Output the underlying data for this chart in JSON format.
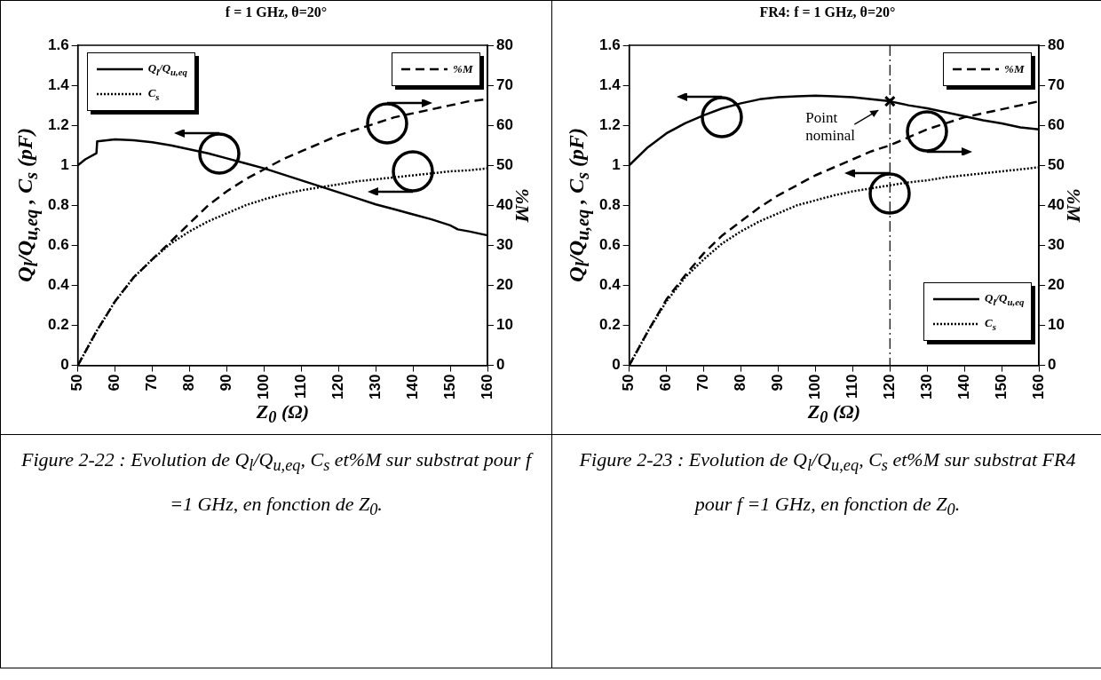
{
  "chart_data": [
    {
      "type": "line",
      "title": "f = 1 GHz, θ=20°",
      "xlabel": "Z$_{0}$ (Ω)",
      "ylabel": "Q$_{l}$/Q$_{u,eq}$ , C$_{s}$ (pF)",
      "y2label": "%M",
      "xlim": [
        50,
        160
      ],
      "xticks": [
        50,
        60,
        70,
        80,
        90,
        100,
        110,
        120,
        130,
        140,
        150,
        160
      ],
      "ylim": [
        0,
        1.6
      ],
      "yticks": [
        0,
        0.2,
        0.4,
        0.6,
        0.8,
        1,
        1.2,
        1.4,
        1.6
      ],
      "y2lim": [
        0,
        80
      ],
      "y2ticks": [
        0,
        10,
        20,
        30,
        40,
        50,
        60,
        70,
        80
      ],
      "legend": "top left",
      "marker": "none",
      "grid": false,
      "series": [
        {
          "name": "Q$_{l}$/Q$_{u,eq}$",
          "color": "#000000",
          "line_style": "solid",
          "x": [
            50,
            52,
            55,
            55.2,
            60,
            65,
            70,
            75,
            80,
            85,
            90,
            95,
            100,
            105,
            110,
            115,
            120,
            125,
            130,
            135,
            140,
            145,
            150,
            152,
            155,
            160
          ],
          "values": [
            1.0,
            1.03,
            1.06,
            1.12,
            1.13,
            1.125,
            1.115,
            1.1,
            1.08,
            1.06,
            1.035,
            1.01,
            0.985,
            0.955,
            0.925,
            0.895,
            0.865,
            0.835,
            0.805,
            0.78,
            0.755,
            0.73,
            0.7,
            0.68,
            0.67,
            0.65
          ]
        },
        {
          "name": "C$_{s}$",
          "color": "#000000",
          "line_style": "dotted",
          "x": [
            50,
            55,
            60,
            65,
            70,
            75,
            80,
            85,
            90,
            95,
            100,
            105,
            110,
            115,
            120,
            125,
            130,
            135,
            140,
            145,
            150,
            155,
            160
          ],
          "values": [
            0,
            0.17,
            0.32,
            0.44,
            0.53,
            0.61,
            0.67,
            0.72,
            0.76,
            0.8,
            0.83,
            0.855,
            0.875,
            0.89,
            0.905,
            0.92,
            0.93,
            0.94,
            0.95,
            0.96,
            0.97,
            0.975,
            0.985
          ]
        },
        {
          "name": "%M",
          "color": "#000000",
          "line_style": "dashed",
          "axis": "y2",
          "x": [
            50,
            55,
            60,
            65,
            70,
            75,
            80,
            85,
            90,
            95,
            100,
            105,
            110,
            115,
            120,
            125,
            130,
            135,
            140,
            145,
            150,
            155,
            160
          ],
          "values": [
            0,
            8.5,
            16,
            22,
            26.5,
            31,
            35.5,
            40,
            43.5,
            46.5,
            49,
            51.5,
            53.5,
            55.5,
            57.5,
            59,
            60.5,
            62,
            63,
            64,
            65,
            66,
            66.5
          ]
        }
      ],
      "annotations": [
        "Figure 2-22 : Evolution de Q$_{l}$/Q$_{u,eq}$, C$_{s}$ et%M sur substrat pour f =1 GHz,  en fonction de Z$_{0}$."
      ]
    },
    {
      "type": "line",
      "title": "FR4: f = 1 GHz, θ=20°",
      "xlabel": "Z$_{0}$ (Ω)",
      "ylabel": "Q$_{l}$/Q$_{u,eq}$ , C$_{s}$ (pF)",
      "y2label": "%M",
      "xlim": [
        50,
        160
      ],
      "xticks": [
        50,
        60,
        70,
        80,
        90,
        100,
        110,
        120,
        130,
        140,
        150,
        160
      ],
      "ylim": [
        0,
        1.6
      ],
      "yticks": [
        0,
        0.2,
        0.4,
        0.6,
        0.8,
        1,
        1.2,
        1.4,
        1.6
      ],
      "y2lim": [
        0,
        80
      ],
      "y2ticks": [
        0,
        10,
        20,
        30,
        40,
        50,
        60,
        70,
        80
      ],
      "legend": "right",
      "marker": "none",
      "grid": false,
      "series": [
        {
          "name": "Q$_{l}$/Q$_{u,eq}$",
          "color": "#000000",
          "line_style": "solid",
          "x": [
            50,
            55,
            60,
            65,
            70,
            75,
            80,
            85,
            90,
            95,
            100,
            105,
            110,
            115,
            120,
            125,
            130,
            135,
            140,
            145,
            150,
            155,
            160
          ],
          "values": [
            1.0,
            1.09,
            1.16,
            1.21,
            1.25,
            1.285,
            1.31,
            1.33,
            1.34,
            1.345,
            1.348,
            1.345,
            1.34,
            1.33,
            1.32,
            1.3,
            1.285,
            1.265,
            1.245,
            1.225,
            1.21,
            1.19,
            1.18
          ]
        },
        {
          "name": "C$_{s}$",
          "color": "#000000",
          "line_style": "dotted",
          "x": [
            50,
            55,
            60,
            65,
            70,
            75,
            80,
            85,
            90,
            95,
            100,
            105,
            110,
            115,
            120,
            125,
            130,
            135,
            140,
            145,
            150,
            155,
            160
          ],
          "values": [
            0,
            0.17,
            0.32,
            0.44,
            0.53,
            0.61,
            0.67,
            0.72,
            0.76,
            0.8,
            0.825,
            0.85,
            0.87,
            0.885,
            0.9,
            0.915,
            0.925,
            0.94,
            0.95,
            0.96,
            0.97,
            0.98,
            0.99
          ]
        },
        {
          "name": "%M",
          "color": "#000000",
          "line_style": "dashed",
          "axis": "y2",
          "x": [
            50,
            55,
            60,
            65,
            70,
            75,
            80,
            85,
            90,
            95,
            100,
            105,
            110,
            115,
            120,
            125,
            130,
            135,
            140,
            145,
            150,
            155,
            160
          ],
          "values": [
            0,
            8.5,
            16.5,
            22.5,
            28,
            32.5,
            36,
            39.5,
            42.5,
            45,
            47.5,
            49.5,
            51.5,
            53.5,
            55,
            57,
            59,
            60.5,
            62,
            63,
            64,
            65,
            66
          ]
        }
      ],
      "ref_lines": [
        {
          "axis": "x",
          "value": 120,
          "color": "#000000"
        }
      ],
      "annotations": [
        {
          "text": "Point nominal",
          "x": 120,
          "y": 1.32
        },
        "Figure 2-23 : Evolution de Q$_{l}$/Q$_{u,eq}$, C$_{s}$ et%M sur substrat FR4  pour f =1 GHz,  en fonction de Z$_{0}$."
      ]
    }
  ]
}
